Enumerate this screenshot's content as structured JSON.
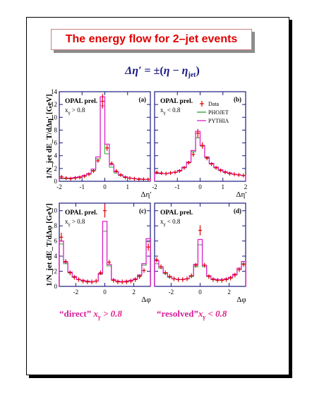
{
  "title": "The energy flow for 2–jet events",
  "formula": {
    "lhs": "Δη′",
    "rel": " = ±(",
    "eta": "η",
    "minus": " − ",
    "etajet": "η",
    "sub": "jet",
    "close": ")"
  },
  "captions": {
    "left": {
      "label": "“direct”",
      "var": "x",
      "sub": "γ",
      "rel": " > 0.8"
    },
    "right": {
      "label": "“resolved”",
      "var": "x",
      "sub": "γ",
      "rel": " < 0.8"
    }
  },
  "labels": {
    "opal": "OPAL prel."
  },
  "legend": [
    {
      "name": "Data",
      "color": "#e00000"
    },
    {
      "name": "PHOJET",
      "color": "#2ca02c"
    },
    {
      "name": "PYTHIA",
      "color": "#e020c8"
    }
  ],
  "colors": {
    "data": "#e00000",
    "phojet": "#2ca02c",
    "pythia": "#e020c8",
    "frame": "#1a1a80"
  },
  "chart_data": [
    {
      "type": "line",
      "panel": "(a)",
      "cut": "x_γ > 0.8",
      "ylabel": "1/N_jet dE_T/dΔη′ [GeV]",
      "xlabel": "Δη′",
      "xlim": [
        -2,
        2
      ],
      "ylim": [
        0,
        14
      ],
      "xticks": [
        -2,
        -1,
        0,
        1
      ],
      "xtick_labels": [
        "-2",
        "-1",
        "0",
        "1"
      ],
      "yticks": [
        0,
        2,
        4,
        6,
        8,
        10,
        12,
        14
      ],
      "ytick_labels": [
        "0",
        "2",
        "4",
        "6",
        "8",
        "10",
        "12",
        "14"
      ],
      "x": [
        -1.9,
        -1.7,
        -1.5,
        -1.3,
        -1.1,
        -0.9,
        -0.7,
        -0.5,
        -0.3,
        -0.1,
        0.1,
        0.3,
        0.5,
        0.7,
        0.9,
        1.1,
        1.3,
        1.5,
        1.7,
        1.9
      ],
      "series": [
        {
          "name": "Data",
          "values": [
            0.7,
            0.5,
            0.4,
            0.5,
            0.6,
            0.8,
            1.1,
            1.6,
            3.2,
            12.5,
            5.2,
            2.8,
            1.6,
            1.0,
            0.6,
            0.5,
            0.4,
            0.3,
            0.3,
            0.3
          ]
        },
        {
          "name": "PHOJET",
          "values": [
            0.4,
            0.4,
            0.4,
            0.5,
            0.6,
            0.8,
            1.1,
            1.7,
            3.5,
            11.8,
            4.3,
            2.2,
            1.3,
            0.9,
            0.6,
            0.5,
            0.4,
            0.3,
            0.3,
            0.3
          ]
        },
        {
          "name": "PYTHIA",
          "values": [
            0.5,
            0.5,
            0.5,
            0.6,
            0.7,
            0.9,
            1.2,
            1.9,
            3.8,
            13.2,
            5.8,
            2.6,
            1.5,
            1.0,
            0.7,
            0.5,
            0.4,
            0.4,
            0.3,
            0.3
          ]
        }
      ]
    },
    {
      "type": "line",
      "panel": "(b)",
      "cut": "x_γ < 0.8",
      "ylabel": "",
      "xlabel": "Δη′",
      "xlim": [
        -2,
        2
      ],
      "ylim": [
        0,
        14
      ],
      "xticks": [
        -2,
        -1,
        0,
        1,
        2
      ],
      "xtick_labels": [
        "-2",
        "-1",
        "0",
        "1",
        "2"
      ],
      "yticks": [
        0,
        2,
        4,
        6,
        8,
        10,
        12,
        14
      ],
      "ytick_labels": [],
      "x": [
        -1.9,
        -1.7,
        -1.5,
        -1.3,
        -1.1,
        -0.9,
        -0.7,
        -0.5,
        -0.3,
        -0.1,
        0.1,
        0.3,
        0.5,
        0.7,
        0.9,
        1.1,
        1.3,
        1.5,
        1.7,
        1.9
      ],
      "series": [
        {
          "name": "Data",
          "values": [
            1.4,
            1.3,
            1.2,
            1.3,
            1.4,
            1.6,
            2.1,
            2.9,
            4.2,
            7.5,
            5.6,
            3.6,
            2.7,
            2.1,
            1.7,
            1.4,
            1.2,
            1.1,
            1.0,
            0.9
          ]
        },
        {
          "name": "PHOJET",
          "values": [
            1.2,
            1.2,
            1.2,
            1.3,
            1.4,
            1.6,
            2.1,
            2.9,
            4.6,
            6.8,
            5.5,
            3.7,
            2.7,
            2.1,
            1.7,
            1.4,
            1.2,
            1.1,
            1.0,
            0.9
          ]
        },
        {
          "name": "PYTHIA",
          "values": [
            1.3,
            1.2,
            1.2,
            1.3,
            1.4,
            1.7,
            2.2,
            3.0,
            4.8,
            7.8,
            5.6,
            3.8,
            2.8,
            2.2,
            1.8,
            1.5,
            1.3,
            1.1,
            1.0,
            0.9
          ]
        }
      ]
    },
    {
      "type": "line",
      "panel": "(c)",
      "cut": "x_γ > 0.8",
      "ylabel": "1/N_jet dE_T/dΔφ [GeV]",
      "xlabel": "Δφ",
      "xlim": [
        -3.14,
        3.14
      ],
      "ylim": [
        0,
        11
      ],
      "xticks": [
        -2,
        0,
        2
      ],
      "xtick_labels": [
        "-2",
        "0",
        "2"
      ],
      "yticks": [
        0,
        2,
        4,
        6,
        8,
        10
      ],
      "ytick_labels": [
        "0",
        "2",
        "4",
        "6",
        "8",
        "10"
      ],
      "x": [
        -3.0,
        -2.7,
        -2.4,
        -2.1,
        -1.8,
        -1.5,
        -1.2,
        -0.9,
        -0.6,
        -0.3,
        0.0,
        0.3,
        0.6,
        0.9,
        1.2,
        1.5,
        1.8,
        2.1,
        2.4,
        2.7,
        3.0
      ],
      "series": [
        {
          "name": "Data",
          "values": [
            6.5,
            3.3,
            1.8,
            1.2,
            0.9,
            0.7,
            0.6,
            0.6,
            0.7,
            1.8,
            10.0,
            3.2,
            0.8,
            0.6,
            0.6,
            0.6,
            0.7,
            0.9,
            1.3,
            2.1,
            5.2
          ]
        },
        {
          "name": "PHOJET",
          "values": [
            5.6,
            3.0,
            1.8,
            1.2,
            0.9,
            0.7,
            0.6,
            0.6,
            0.7,
            1.6,
            7.3,
            2.7,
            0.8,
            0.6,
            0.6,
            0.6,
            0.7,
            0.9,
            1.4,
            2.8,
            5.9
          ]
        },
        {
          "name": "PYTHIA",
          "values": [
            6.0,
            3.2,
            1.9,
            1.3,
            0.9,
            0.8,
            0.7,
            0.6,
            0.7,
            1.7,
            8.6,
            2.9,
            0.9,
            0.7,
            0.6,
            0.7,
            0.8,
            1.0,
            1.5,
            3.0,
            6.3
          ]
        }
      ]
    },
    {
      "type": "line",
      "panel": "(d)",
      "cut": "x_γ < 0.8",
      "ylabel": "",
      "xlabel": "Δφ",
      "xlim": [
        -3.14,
        3.14
      ],
      "ylim": [
        0,
        11
      ],
      "xticks": [
        -2,
        0,
        2
      ],
      "xtick_labels": [
        "-2",
        "0",
        "2"
      ],
      "yticks": [
        0,
        2,
        4,
        6,
        8,
        10
      ],
      "ytick_labels": [],
      "x": [
        -3.0,
        -2.7,
        -2.4,
        -2.1,
        -1.8,
        -1.5,
        -1.2,
        -0.9,
        -0.6,
        -0.3,
        0.0,
        0.3,
        0.6,
        0.9,
        1.2,
        1.5,
        1.8,
        2.1,
        2.4,
        2.7,
        3.0
      ],
      "series": [
        {
          "name": "Data",
          "values": [
            3.5,
            2.6,
            1.8,
            1.3,
            1.0,
            0.9,
            0.9,
            1.0,
            1.4,
            2.8,
            7.4,
            2.8,
            1.3,
            0.9,
            0.8,
            0.8,
            0.9,
            1.1,
            1.5,
            2.2,
            2.9
          ]
        },
        {
          "name": "PHOJET",
          "values": [
            3.0,
            2.4,
            1.7,
            1.2,
            1.0,
            0.9,
            0.9,
            1.0,
            1.3,
            2.6,
            5.5,
            2.6,
            1.3,
            0.9,
            0.8,
            0.8,
            0.9,
            1.1,
            1.5,
            2.2,
            3.0
          ]
        },
        {
          "name": "PYTHIA",
          "values": [
            3.4,
            2.6,
            1.8,
            1.3,
            1.0,
            0.9,
            0.9,
            1.0,
            1.4,
            2.9,
            6.2,
            2.8,
            1.4,
            1.0,
            0.9,
            0.9,
            1.0,
            1.2,
            1.6,
            2.4,
            3.3
          ]
        }
      ]
    }
  ]
}
